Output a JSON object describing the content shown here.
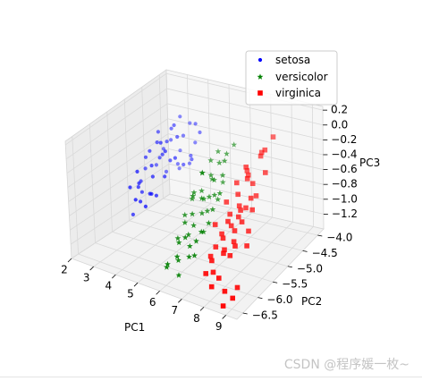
{
  "chart_data": {
    "type": "scatter",
    "projection": "3d",
    "xlabel": "PC1",
    "ylabel": "PC2",
    "zlabel": "PC3",
    "xlim": [
      2,
      9.5
    ],
    "ylim": [
      -6.7,
      -3.8
    ],
    "zlim": [
      -1.4,
      0.25
    ],
    "xticks": [
      "2",
      "3",
      "4",
      "5",
      "6",
      "7",
      "8",
      "9"
    ],
    "yticks": [
      "−4.0",
      "−4.5",
      "−5.0",
      "−5.5",
      "−6.0",
      "−6.5"
    ],
    "zticks": [
      "0.2",
      "0.0",
      "−0.2",
      "−0.4",
      "−0.6",
      "−0.8",
      "−1.0",
      "−1.2"
    ],
    "legend_position": "top-right",
    "series": [
      {
        "name": "setosa",
        "marker": "dot",
        "color": "#0000ff",
        "points": [
          [
            2.8,
            -4.6,
            -0.4
          ],
          [
            2.6,
            -4.7,
            -0.5
          ],
          [
            2.7,
            -4.5,
            -0.3
          ],
          [
            3.0,
            -4.3,
            -0.3
          ],
          [
            2.9,
            -4.6,
            -0.6
          ],
          [
            3.1,
            -4.5,
            -0.4
          ],
          [
            3.2,
            -4.7,
            -0.5
          ],
          [
            3.3,
            -4.4,
            -0.2
          ],
          [
            3.4,
            -4.6,
            -0.6
          ],
          [
            3.5,
            -4.8,
            -0.4
          ],
          [
            3.6,
            -4.5,
            -0.3
          ],
          [
            3.0,
            -4.9,
            -0.6
          ],
          [
            3.2,
            -5.0,
            -0.7
          ],
          [
            2.8,
            -4.2,
            -0.5
          ],
          [
            3.4,
            -4.2,
            -0.4
          ],
          [
            3.6,
            -4.9,
            -0.7
          ],
          [
            3.8,
            -4.7,
            -0.5
          ],
          [
            3.1,
            -4.1,
            -0.2
          ],
          [
            3.3,
            -4.8,
            -0.3
          ],
          [
            2.5,
            -5.0,
            -0.9
          ],
          [
            2.7,
            -5.1,
            -0.8
          ],
          [
            2.3,
            -4.8,
            -0.9
          ],
          [
            2.5,
            -4.9,
            -1.0
          ],
          [
            2.9,
            -5.2,
            -1.0
          ],
          [
            3.2,
            -5.1,
            -0.9
          ],
          [
            2.4,
            -4.4,
            -0.8
          ],
          [
            2.2,
            -5.0,
            -1.3
          ],
          [
            2.6,
            -5.3,
            -0.8
          ],
          [
            3.0,
            -5.4,
            -0.9
          ],
          [
            3.5,
            -5.1,
            -0.9
          ],
          [
            3.7,
            -4.4,
            -0.7
          ],
          [
            3.9,
            -4.3,
            -0.6
          ],
          [
            4.1,
            -4.4,
            -0.6
          ],
          [
            3.5,
            -4.1,
            -0.8
          ],
          [
            2.9,
            -4.0,
            -0.7
          ],
          [
            3.3,
            -5.3,
            -1.0
          ],
          [
            2.7,
            -4.3,
            -0.9
          ],
          [
            3.1,
            -4.2,
            -0.8
          ],
          [
            4.0,
            -4.2,
            -0.2
          ],
          [
            3.4,
            -4.0,
            -0.3
          ],
          [
            2.8,
            -5.2,
            -0.6
          ],
          [
            3.6,
            -5.3,
            -0.8
          ],
          [
            4.2,
            -4.2,
            -0.3
          ],
          [
            2.6,
            -4.3,
            -0.6
          ],
          [
            3.8,
            -4.1,
            -0.5
          ],
          [
            2.4,
            -4.7,
            -0.6
          ],
          [
            2.2,
            -4.6,
            -0.8
          ],
          [
            3.0,
            -4.1,
            -0.9
          ]
        ]
      },
      {
        "name": "versicolor",
        "marker": "star",
        "color": "#008000",
        "points": [
          [
            6.0,
            -5.3,
            -0.3
          ],
          [
            6.1,
            -5.1,
            -0.4
          ],
          [
            5.9,
            -5.5,
            -0.5
          ],
          [
            6.2,
            -5.4,
            -0.6
          ],
          [
            6.4,
            -5.2,
            -0.4
          ],
          [
            6.1,
            -5.7,
            -0.7
          ],
          [
            5.8,
            -5.2,
            -0.6
          ],
          [
            6.0,
            -5.0,
            -0.5
          ],
          [
            6.3,
            -5.8,
            -0.8
          ],
          [
            6.5,
            -5.5,
            -0.7
          ],
          [
            6.2,
            -5.9,
            -0.9
          ],
          [
            5.9,
            -5.8,
            -0.8
          ],
          [
            6.4,
            -6.0,
            -1.0
          ],
          [
            6.6,
            -5.7,
            -0.9
          ],
          [
            6.1,
            -6.2,
            -1.1
          ],
          [
            5.7,
            -5.9,
            -1.0
          ],
          [
            6.0,
            -6.1,
            -1.2
          ],
          [
            6.3,
            -6.3,
            -1.3
          ],
          [
            5.8,
            -6.3,
            -1.2
          ],
          [
            6.5,
            -6.1,
            -1.1
          ],
          [
            6.7,
            -5.4,
            -0.5
          ],
          [
            6.8,
            -5.2,
            -0.3
          ],
          [
            6.6,
            -5.0,
            -0.2
          ],
          [
            6.9,
            -5.6,
            -0.6
          ],
          [
            7.0,
            -5.8,
            -0.7
          ],
          [
            6.7,
            -6.0,
            -0.9
          ],
          [
            5.6,
            -5.6,
            -0.8
          ],
          [
            5.5,
            -5.3,
            -0.7
          ],
          [
            5.7,
            -5.1,
            -0.4
          ],
          [
            6.2,
            -4.9,
            -0.3
          ],
          [
            6.4,
            -4.8,
            -0.2
          ],
          [
            6.6,
            -4.7,
            -0.1
          ],
          [
            6.0,
            -4.8,
            -0.2
          ],
          [
            5.8,
            -4.9,
            -0.3
          ],
          [
            6.3,
            -5.3,
            -0.6
          ],
          [
            6.8,
            -5.9,
            -0.8
          ],
          [
            6.9,
            -6.2,
            -1.0
          ],
          [
            5.9,
            -6.0,
            -1.0
          ],
          [
            6.1,
            -5.4,
            -0.6
          ],
          [
            6.5,
            -5.0,
            -0.5
          ],
          [
            6.2,
            -6.0,
            -0.9
          ],
          [
            5.6,
            -6.2,
            -1.3
          ],
          [
            6.4,
            -5.6,
            -0.7
          ],
          [
            7.1,
            -5.5,
            -0.4
          ],
          [
            6.0,
            -5.6,
            -0.5
          ],
          [
            6.7,
            -5.3,
            -0.6
          ]
        ]
      },
      {
        "name": "virginica",
        "marker": "square",
        "color": "#ff0000",
        "points": [
          [
            7.6,
            -5.0,
            -0.2
          ],
          [
            7.8,
            -5.1,
            -0.3
          ],
          [
            8.0,
            -4.8,
            -0.1
          ],
          [
            7.5,
            -5.2,
            -0.5
          ],
          [
            7.7,
            -5.3,
            -0.6
          ],
          [
            7.9,
            -5.0,
            -0.4
          ],
          [
            8.1,
            -5.2,
            -0.5
          ],
          [
            7.4,
            -5.4,
            -0.7
          ],
          [
            7.6,
            -5.5,
            -0.8
          ],
          [
            7.8,
            -5.4,
            -0.7
          ],
          [
            8.0,
            -5.3,
            -0.6
          ],
          [
            8.2,
            -5.1,
            -0.5
          ],
          [
            7.3,
            -5.6,
            -0.9
          ],
          [
            7.5,
            -5.7,
            -0.9
          ],
          [
            7.7,
            -5.8,
            -1.0
          ],
          [
            7.9,
            -5.6,
            -0.8
          ],
          [
            8.1,
            -5.5,
            -0.7
          ],
          [
            8.3,
            -5.3,
            -0.6
          ],
          [
            7.2,
            -5.9,
            -1.1
          ],
          [
            7.4,
            -6.0,
            -1.1
          ],
          [
            7.6,
            -6.1,
            -1.2
          ],
          [
            7.8,
            -6.3,
            -1.3
          ],
          [
            8.0,
            -6.2,
            -1.2
          ],
          [
            8.4,
            -6.3,
            -1.3
          ],
          [
            8.6,
            -6.5,
            -1.4
          ],
          [
            8.7,
            -6.1,
            -1.3
          ],
          [
            8.9,
            -6.4,
            -1.3
          ],
          [
            7.0,
            -5.6,
            -0.8
          ],
          [
            7.1,
            -5.3,
            -0.6
          ],
          [
            7.3,
            -5.1,
            -0.4
          ],
          [
            8.2,
            -4.8,
            0.0
          ],
          [
            8.3,
            -4.6,
            0.1
          ],
          [
            7.9,
            -4.7,
            -0.1
          ],
          [
            8.5,
            -5.0,
            -0.2
          ],
          [
            7.7,
            -5.0,
            -0.3
          ],
          [
            7.5,
            -4.9,
            -0.3
          ],
          [
            8.0,
            -5.7,
            -0.9
          ],
          [
            8.2,
            -5.8,
            -0.9
          ],
          [
            7.3,
            -5.8,
            -1.0
          ],
          [
            7.6,
            -5.6,
            -0.7
          ],
          [
            7.9,
            -5.4,
            -0.6
          ],
          [
            8.1,
            -5.9,
            -1.0
          ],
          [
            7.4,
            -6.2,
            -1.2
          ],
          [
            8.4,
            -5.5,
            -0.8
          ],
          [
            7.8,
            -5.9,
            -1.0
          ],
          [
            8.6,
            -5.7,
            -0.9
          ]
        ]
      }
    ]
  },
  "watermark": "CSDN @程序媛一枚~"
}
